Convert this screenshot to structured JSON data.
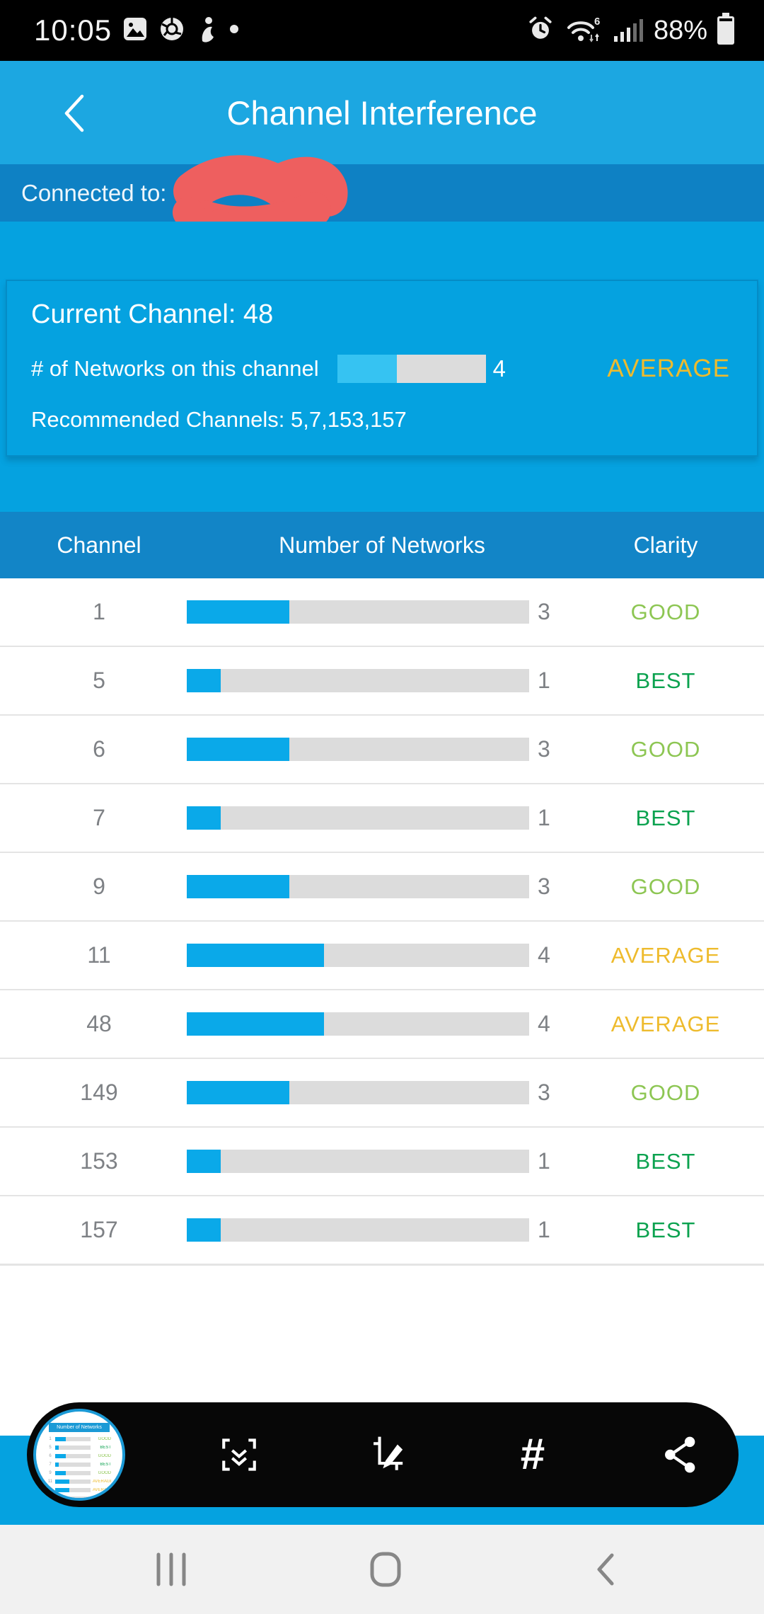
{
  "status_bar": {
    "time": "10:05",
    "battery_text": "88%",
    "wifi_generation": "6",
    "icons_left": [
      "gallery-icon",
      "chrome-icon",
      "profile-icon",
      "notification-dot"
    ],
    "icons_right": [
      "alarm-icon",
      "wifi-icon",
      "signal-icon",
      "battery-icon"
    ]
  },
  "header": {
    "title": "Channel Interference",
    "back_icon": "back-chevron"
  },
  "connection": {
    "label": "Connected to:",
    "ssid_redacted": true
  },
  "card": {
    "current_channel_label": "Current Channel: 48",
    "networks_label": "# of Networks on this channel",
    "networks": 4,
    "rating": "AVERAGE",
    "recommended_label": "Recommended Channels: 5,7,153,157"
  },
  "table": {
    "headers": [
      "Channel",
      "Number of Networks",
      "Clarity"
    ],
    "bar_max": 10,
    "rows": [
      {
        "channel": 1,
        "networks": 3,
        "clarity": "GOOD"
      },
      {
        "channel": 5,
        "networks": 1,
        "clarity": "BEST"
      },
      {
        "channel": 6,
        "networks": 3,
        "clarity": "GOOD"
      },
      {
        "channel": 7,
        "networks": 1,
        "clarity": "BEST"
      },
      {
        "channel": 9,
        "networks": 3,
        "clarity": "GOOD"
      },
      {
        "channel": 11,
        "networks": 4,
        "clarity": "AVERAGE"
      },
      {
        "channel": 48,
        "networks": 4,
        "clarity": "AVERAGE"
      },
      {
        "channel": 149,
        "networks": 3,
        "clarity": "GOOD"
      },
      {
        "channel": 153,
        "networks": 1,
        "clarity": "BEST"
      },
      {
        "channel": 157,
        "networks": 1,
        "clarity": "BEST"
      }
    ]
  },
  "toolbar": {
    "thumbnail_header": "Number of Networks",
    "icons": [
      "screenshot-thumbnail",
      "scroll-capture-icon",
      "edit-icon",
      "tag-icon",
      "share-icon"
    ]
  },
  "nav": {
    "icons": [
      "recents-icon",
      "home-icon",
      "back-icon"
    ]
  },
  "colors": {
    "clarity": {
      "GOOD": "#8dc653",
      "BEST": "#0ba24f",
      "AVERAGE": "#eebb2d"
    },
    "bar_fill": "#0aa9e9",
    "bar_track": "#dcdcdc",
    "accent_blue": "#05a2e0",
    "header_blue": "#1ca7e1",
    "band_blue": "#0e81c4",
    "table_head_blue": "#1285c7",
    "redaction_red": "#ee5f5f"
  }
}
